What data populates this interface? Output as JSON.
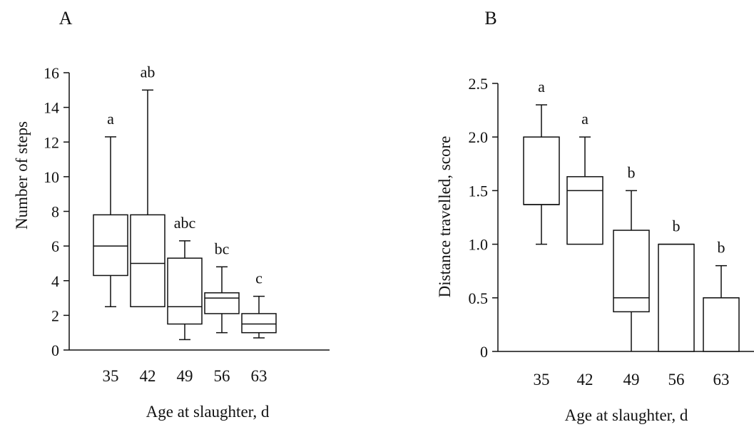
{
  "chart_data": [
    {
      "type": "boxplot",
      "panel_label": "A",
      "xlabel": "Age at slaughter, d",
      "ylabel": "Number of steps",
      "ylim": [
        0,
        16
      ],
      "yticks": [
        "0",
        "2",
        "4",
        "6",
        "8",
        "10",
        "12",
        "14",
        "16"
      ],
      "categories": [
        "35",
        "42",
        "49",
        "56",
        "63"
      ],
      "boxes": [
        {
          "min": 2.5,
          "q1": 4.3,
          "median": 6.0,
          "q3": 7.8,
          "max": 12.3,
          "letter": "a"
        },
        {
          "min": 2.5,
          "q1": 2.5,
          "median": 5.0,
          "q3": 7.8,
          "max": 15.0,
          "letter": "ab"
        },
        {
          "min": 0.6,
          "q1": 1.5,
          "median": 2.5,
          "q3": 5.3,
          "max": 6.3,
          "letter": "abc"
        },
        {
          "min": 1.0,
          "q1": 2.1,
          "median": 3.0,
          "q3": 3.3,
          "max": 4.8,
          "letter": "bc"
        },
        {
          "min": 0.7,
          "q1": 1.0,
          "median": 1.5,
          "q3": 2.1,
          "max": 3.1,
          "letter": "c"
        }
      ]
    },
    {
      "type": "boxplot",
      "panel_label": "B",
      "xlabel": "Age at slaughter, d",
      "ylabel": "Distance travelled, score",
      "ylim": [
        0,
        2.5
      ],
      "yticks": [
        "0",
        "0.5",
        "1.0",
        "1.5",
        "2.0",
        "2.5"
      ],
      "categories": [
        "35",
        "42",
        "49",
        "56",
        "63"
      ],
      "boxes": [
        {
          "min": 1.0,
          "q1": 1.37,
          "median": 1.37,
          "q3": 2.0,
          "max": 2.3,
          "letter": "a"
        },
        {
          "min": 1.0,
          "q1": 1.0,
          "median": 1.5,
          "q3": 1.63,
          "max": 2.0,
          "letter": "a"
        },
        {
          "min": 0.0,
          "q1": 0.37,
          "median": 0.5,
          "q3": 1.13,
          "max": 1.5,
          "letter": "b"
        },
        {
          "min": 0.0,
          "q1": 0.0,
          "median": 1.0,
          "q3": 1.0,
          "max": 1.0,
          "letter": "b"
        },
        {
          "min": 0.0,
          "q1": 0.0,
          "median": 0.5,
          "q3": 0.5,
          "max": 0.8,
          "letter": "b"
        }
      ]
    }
  ]
}
